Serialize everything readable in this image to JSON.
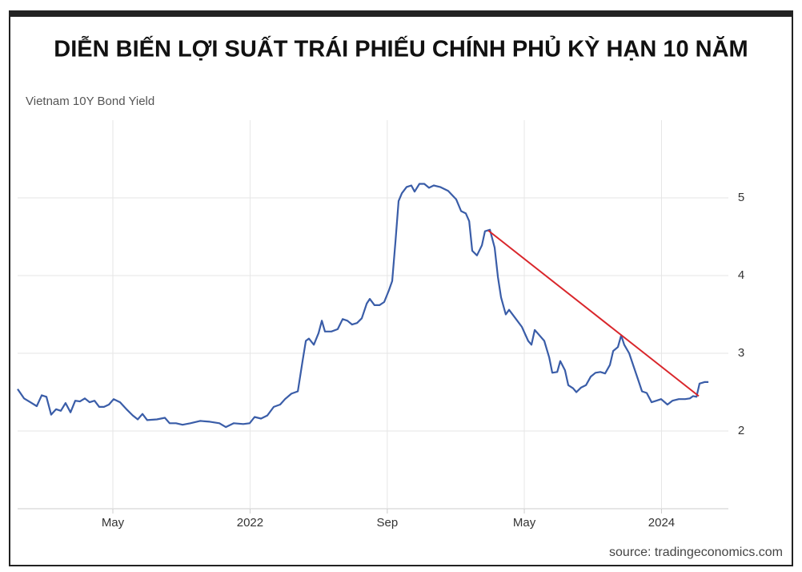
{
  "chart_data": {
    "type": "line",
    "title": "DIỄN BIẾN LỢI SUẤT TRÁI PHIẾU CHÍNH PHỦ KỲ HẠN 10 NĂM",
    "subtitle": "Vietnam 10Y Bond Yield",
    "source": "source: tradingeconomics.com",
    "x": [
      2020.87,
      2020.901,
      2020.932,
      2020.963,
      2020.987,
      2021.01,
      2021.033,
      2021.057,
      2021.08,
      2021.103,
      2021.127,
      2021.15,
      2021.173,
      2021.197,
      2021.22,
      2021.244,
      2021.267,
      2021.29,
      2021.314,
      2021.337,
      2021.368,
      2021.399,
      2021.43,
      2021.454,
      2021.477,
      2021.5,
      2021.547,
      2021.586,
      2021.609,
      2021.64,
      2021.672,
      2021.71,
      2021.757,
      2021.804,
      2021.851,
      2021.882,
      2021.921,
      2021.967,
      2021.998,
      2022.022,
      2022.053,
      2022.084,
      2022.115,
      2022.146,
      2022.17,
      2022.201,
      2022.232,
      2022.255,
      2022.271,
      2022.286,
      2022.31,
      2022.333,
      2022.349,
      2022.364,
      2022.395,
      2022.426,
      2022.45,
      2022.473,
      2022.496,
      2022.52,
      2022.543,
      2022.567,
      2022.582,
      2022.605,
      2022.629,
      2022.652,
      2022.675,
      2022.691,
      2022.707,
      2022.722,
      2022.738,
      2022.761,
      2022.784,
      2022.8,
      2022.823,
      2022.847,
      2022.87,
      2022.893,
      2022.924,
      2022.963,
      2023.002,
      2023.026,
      2023.049,
      2023.065,
      2023.08,
      2023.103,
      2023.127,
      2023.142,
      2023.166,
      2023.189,
      2023.205,
      2023.22,
      2023.243,
      2023.259,
      2023.29,
      2023.321,
      2023.352,
      2023.368,
      2023.384,
      2023.407,
      2023.43,
      2023.454,
      2023.469,
      2023.493,
      2023.508,
      2023.531,
      2023.547,
      2023.57,
      2023.586,
      2023.609,
      2023.633,
      2023.656,
      2023.679,
      2023.703,
      2023.726,
      2023.749,
      2023.765,
      2023.788,
      2023.804,
      2023.819,
      2023.843,
      2023.866,
      2023.889,
      2023.905,
      2023.928,
      2023.952,
      2023.975,
      2023.998,
      2024.029,
      2024.053,
      2024.084,
      2024.115,
      2024.138,
      2024.154,
      2024.17,
      2024.185,
      2024.209,
      2024.228
    ],
    "series": [
      {
        "color": "#3a5da8",
        "values": [
          2.54,
          2.42,
          2.37,
          2.32,
          2.46,
          2.44,
          2.21,
          2.28,
          2.26,
          2.36,
          2.24,
          2.39,
          2.38,
          2.42,
          2.37,
          2.39,
          2.31,
          2.31,
          2.34,
          2.41,
          2.37,
          2.28,
          2.2,
          2.15,
          2.22,
          2.14,
          2.15,
          2.17,
          2.1,
          2.1,
          2.08,
          2.1,
          2.13,
          2.12,
          2.1,
          2.05,
          2.1,
          2.09,
          2.1,
          2.18,
          2.16,
          2.2,
          2.31,
          2.34,
          2.41,
          2.48,
          2.51,
          2.9,
          3.16,
          3.19,
          3.11,
          3.26,
          3.42,
          3.28,
          3.28,
          3.31,
          3.44,
          3.42,
          3.37,
          3.39,
          3.45,
          3.64,
          3.7,
          3.62,
          3.62,
          3.66,
          3.81,
          3.93,
          4.44,
          4.96,
          5.06,
          5.14,
          5.16,
          5.08,
          5.18,
          5.18,
          5.13,
          5.16,
          5.14,
          5.09,
          4.98,
          4.83,
          4.8,
          4.7,
          4.32,
          4.26,
          4.39,
          4.57,
          4.59,
          4.36,
          3.98,
          3.72,
          3.5,
          3.56,
          3.45,
          3.34,
          3.16,
          3.11,
          3.3,
          3.23,
          3.16,
          2.95,
          2.75,
          2.76,
          2.9,
          2.78,
          2.59,
          2.55,
          2.5,
          2.56,
          2.59,
          2.7,
          2.75,
          2.76,
          2.74,
          2.85,
          3.03,
          3.08,
          3.23,
          3.11,
          3.0,
          2.82,
          2.64,
          2.51,
          2.49,
          2.37,
          2.39,
          2.41,
          2.34,
          2.39,
          2.41,
          2.41,
          2.42,
          2.45,
          2.44,
          2.61,
          2.63,
          2.63
        ]
      }
    ],
    "trend_line": {
      "color": "#d9262b",
      "x": [
        2023.158,
        2024.181
      ],
      "values": [
        4.58,
        2.45
      ]
    },
    "xlim": [
      2020.87,
      2024.325
    ],
    "xticks": [
      {
        "value": 2021.333,
        "label": "May"
      },
      2022,
      {
        "value": 2022.667,
        "label": "Sep"
      },
      {
        "value": 2023.333,
        "label": "May"
      },
      2024
    ],
    "ylim": [
      1,
      6
    ],
    "yticks": [
      2,
      3,
      4,
      5
    ],
    "grid": true
  }
}
